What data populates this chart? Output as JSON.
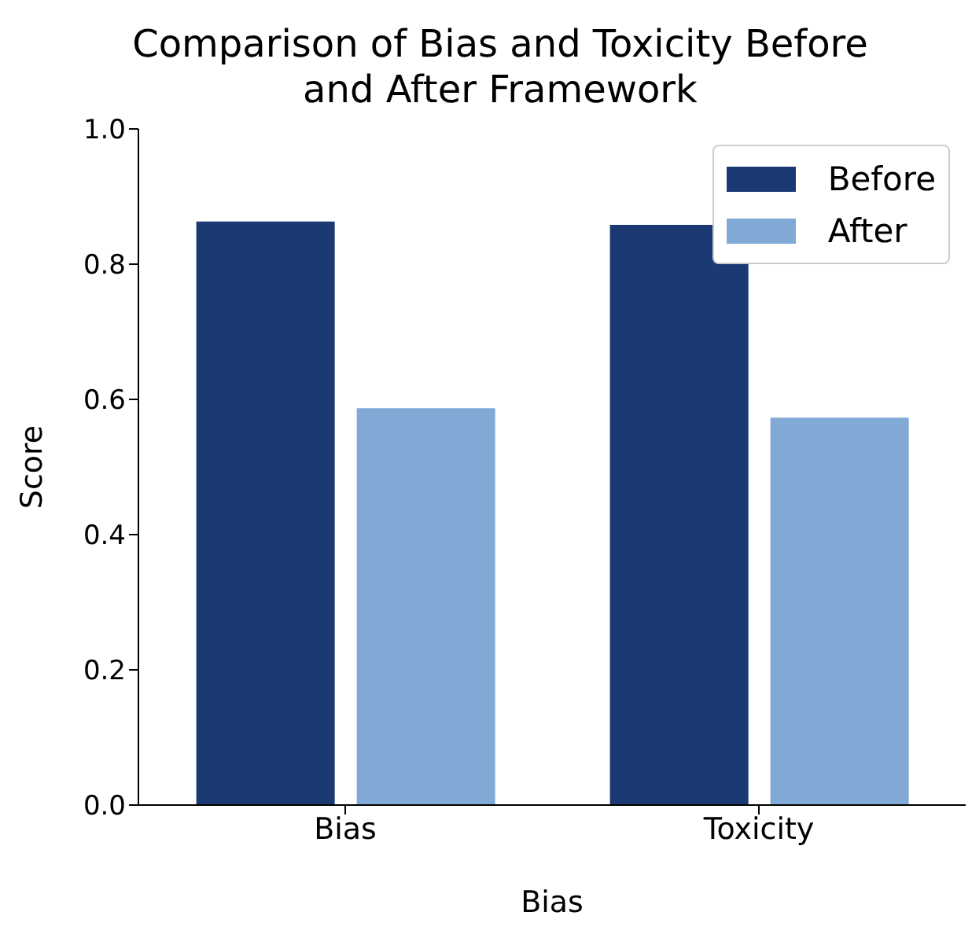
{
  "chart_data": {
    "type": "bar",
    "title": "Comparison of Bias and Toxicity Before and After Framework",
    "xlabel": "Bias",
    "ylabel": "Score",
    "categories": [
      "Bias",
      "Toxicity"
    ],
    "series": [
      {
        "name": "Before",
        "color": "#1b3a73",
        "values": [
          0.863,
          0.858
        ]
      },
      {
        "name": "After",
        "color": "#80a9d6",
        "values": [
          0.587,
          0.573
        ]
      }
    ],
    "ylim": [
      0,
      1
    ],
    "yticks": [
      {
        "value": 0,
        "label": "0.0"
      },
      0.2,
      0.4,
      0.6,
      0.8,
      {
        "value": 1,
        "label": "1.0"
      }
    ],
    "grid": false,
    "legend": "top right"
  }
}
